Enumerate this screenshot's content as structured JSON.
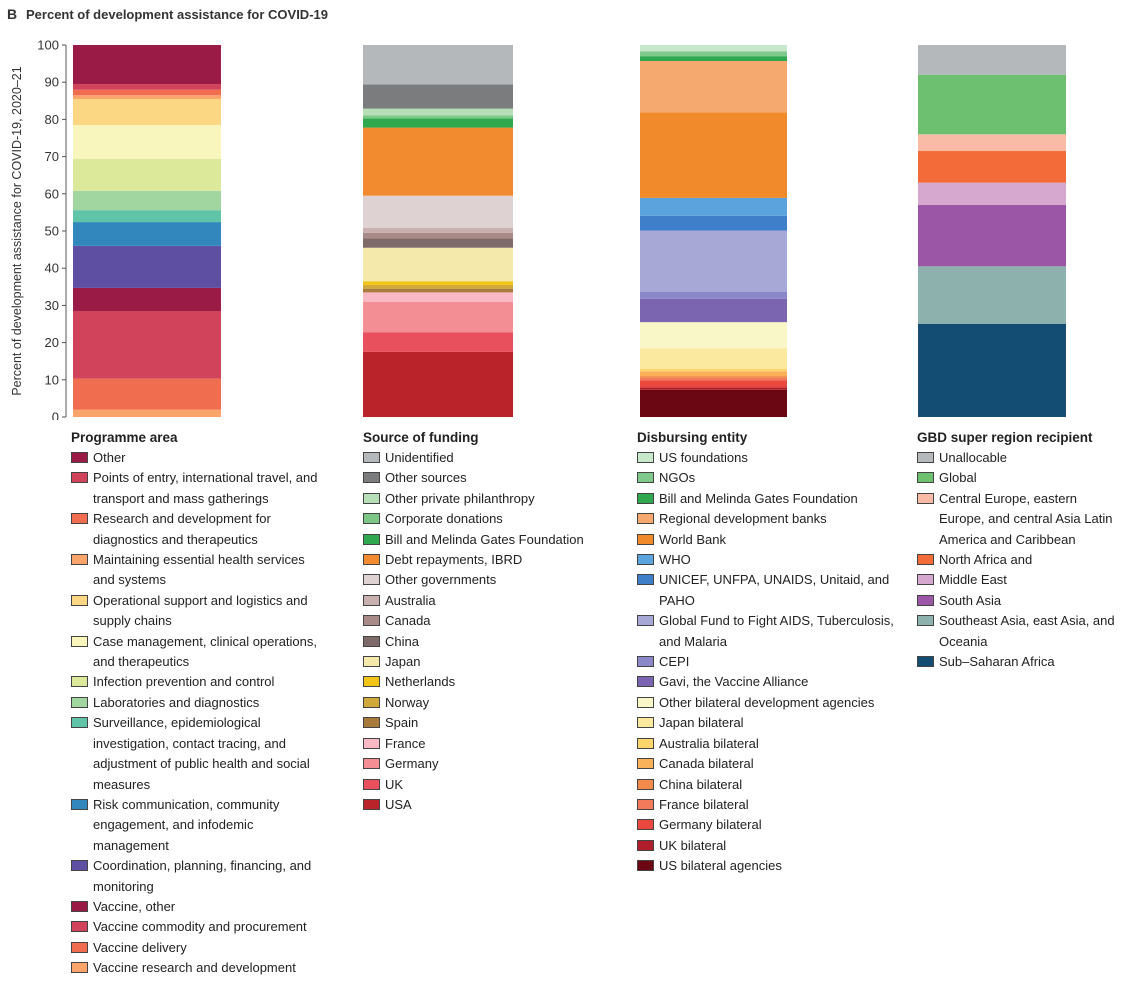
{
  "panel_label": "B",
  "title": "Percent of development assistance for COVID-19",
  "chart_data": [
    {
      "type": "bar",
      "stacked": true,
      "title": "Programme area",
      "ylabel": "Percent of development assistance for COVID-19, 2020–21",
      "ylim": [
        0,
        100
      ],
      "yticks": [
        0,
        10,
        20,
        30,
        40,
        50,
        60,
        70,
        80,
        90,
        100
      ],
      "series": [
        {
          "name": "Other",
          "color": "#9b1b47",
          "values": [
            10.5
          ]
        },
        {
          "name": "Points of entry, international travel, and transport and mass gatherings",
          "color": "#d1435b",
          "values": [
            1.5
          ]
        },
        {
          "name": "Research and development for diagnostics and therapeutics",
          "color": "#f06e4f",
          "values": [
            1.5
          ]
        },
        {
          "name": "Maintaining essential health services and systems",
          "color": "#f8a46a",
          "values": [
            1
          ]
        },
        {
          "name": "Operational support and logistics and supply chains",
          "color": "#fbd783",
          "values": [
            7
          ]
        },
        {
          "name": "Case management, clinical operations, and therapeutics",
          "color": "#f8f5bd",
          "values": [
            9.1
          ]
        },
        {
          "name": "Infection prevention and control",
          "color": "#dce89a",
          "values": [
            8.6
          ]
        },
        {
          "name": "Laboratories and diagnostics",
          "color": "#a2d6a0",
          "values": [
            5.2
          ]
        },
        {
          "name": "Surveillance, epidemiological investigation, contact tracing, and adjustment of public health and social measures",
          "color": "#5fc4a8",
          "values": [
            3.2
          ]
        },
        {
          "name": "Risk communication, community engagement, and infodemic management",
          "color": "#3288bd",
          "values": [
            6.4
          ]
        },
        {
          "name": "Coordination, planning, financing, and monitoring",
          "color": "#5e4fa2",
          "values": [
            11.3
          ]
        },
        {
          "name": "Vaccine, other",
          "color": "#9b1b47",
          "values": [
            6.2
          ]
        },
        {
          "name": "Vaccine commodity and procurement",
          "color": "#d1435b",
          "values": [
            18.2
          ]
        },
        {
          "name": "Vaccine delivery",
          "color": "#f06e4f",
          "values": [
            8.3
          ]
        },
        {
          "name": "Vaccine research and development",
          "color": "#f8a46a",
          "values": [
            2
          ]
        }
      ]
    },
    {
      "type": "bar",
      "stacked": true,
      "title": "Source of funding",
      "ylim": [
        0,
        100
      ],
      "series": [
        {
          "name": "Unidentified",
          "color": "#b4b8bb",
          "values": [
            10.6
          ]
        },
        {
          "name": "Other sources",
          "color": "#7a7c7e",
          "values": [
            6.5
          ]
        },
        {
          "name": "Other private philanthropy",
          "color": "#b6dfb8",
          "values": [
            1.8
          ]
        },
        {
          "name": "Corporate donations",
          "color": "#7cc785",
          "values": [
            0.8
          ]
        },
        {
          "name": "Bill and Melinda Gates Foundation",
          "color": "#2fa84f",
          "values": [
            2.5
          ]
        },
        {
          "name": "Debt repayments, IBRD",
          "color": "#f28b30",
          "values": [
            18.3
          ]
        },
        {
          "name": "Other governments",
          "color": "#ded2d2",
          "values": [
            8.7
          ]
        },
        {
          "name": "Australia",
          "color": "#c8b0ae",
          "values": [
            1.3
          ]
        },
        {
          "name": "Canada",
          "color": "#a88a88",
          "values": [
            1.5
          ]
        },
        {
          "name": "China",
          "color": "#7f6a6a",
          "values": [
            2.5
          ]
        },
        {
          "name": "Japan",
          "color": "#f4e9aa",
          "values": [
            9
          ]
        },
        {
          "name": "Netherlands",
          "color": "#f1c518",
          "values": [
            1
          ]
        },
        {
          "name": "Norway",
          "color": "#d0a93a",
          "values": [
            1
          ]
        },
        {
          "name": "Spain",
          "color": "#a87a3c",
          "values": [
            1
          ]
        },
        {
          "name": "France",
          "color": "#f8b8c4",
          "values": [
            2.5
          ]
        },
        {
          "name": "Germany",
          "color": "#f38f94",
          "values": [
            8.2
          ]
        },
        {
          "name": "UK",
          "color": "#e8505d",
          "values": [
            5.3
          ]
        },
        {
          "name": "USA",
          "color": "#b92329",
          "values": [
            17.5
          ]
        }
      ]
    },
    {
      "type": "bar",
      "stacked": true,
      "title": "Disbursing entity",
      "ylim": [
        0,
        100
      ],
      "series": [
        {
          "name": "US foundations",
          "color": "#c7e8cb",
          "values": [
            1.7
          ]
        },
        {
          "name": "NGOs",
          "color": "#7ec98b",
          "values": [
            1.3
          ]
        },
        {
          "name": "Bill and Melinda Gates Foundation",
          "color": "#2fa84f",
          "values": [
            1.3
          ]
        },
        {
          "name": "Regional development banks",
          "color": "#f6a96f",
          "values": [
            13.8
          ]
        },
        {
          "name": "World Bank",
          "color": "#f08a2a",
          "values": [
            23
          ]
        },
        {
          "name": "WHO",
          "color": "#5ba3dc",
          "values": [
            4.8
          ]
        },
        {
          "name": "UNICEF, UNFPA, UNAIDS, Unitaid, and PAHO",
          "color": "#3f7fc9",
          "values": [
            4
          ]
        },
        {
          "name": "Global Fund to Fight AIDS, Tuberculosis, and Malaria",
          "color": "#a8a8d6",
          "values": [
            16.5
          ]
        },
        {
          "name": "CEPI",
          "color": "#8a88c8",
          "values": [
            1.8
          ]
        },
        {
          "name": "Gavi, the Vaccine Alliance",
          "color": "#7b65b1",
          "values": [
            6.3
          ]
        },
        {
          "name": "Other bilateral development agencies",
          "color": "#f9f6c8",
          "values": [
            7
          ]
        },
        {
          "name": "Japan bilateral",
          "color": "#fbe9a0",
          "values": [
            5.5
          ]
        },
        {
          "name": "Australia bilateral",
          "color": "#fbd66c",
          "values": [
            0.7
          ]
        },
        {
          "name": "Canada bilateral",
          "color": "#f9b25a",
          "values": [
            1.3
          ]
        },
        {
          "name": "China bilateral",
          "color": "#f48a4c",
          "values": [
            0.5
          ]
        },
        {
          "name": "France bilateral",
          "color": "#f37a5a",
          "values": [
            0.7
          ]
        },
        {
          "name": "Germany bilateral",
          "color": "#e8483d",
          "values": [
            1.8
          ]
        },
        {
          "name": "UK bilateral",
          "color": "#b11e2b",
          "values": [
            0.7
          ]
        },
        {
          "name": "US bilateral agencies",
          "color": "#6b0712",
          "values": [
            7.3
          ]
        }
      ]
    },
    {
      "type": "bar",
      "stacked": true,
      "title": "GBD super region recipient",
      "ylim": [
        0,
        100
      ],
      "series": [
        {
          "name": "Unallocable",
          "color": "#b4b8bb",
          "values": [
            8
          ]
        },
        {
          "name": "Global",
          "color": "#6cc070",
          "values": [
            16
          ]
        },
        {
          "name": "Central Europe, eastern Europe, and central Asia Latin America and Caribbean",
          "color": "#f9bba6",
          "values": [
            4.5
          ]
        },
        {
          "name": "North Africa and",
          "color": "#f26b38",
          "values": [
            8.5
          ]
        },
        {
          "name": "Middle East",
          "color": "#d7a8cf",
          "values": [
            6
          ]
        },
        {
          "name": "South Asia",
          "color": "#9b57a6",
          "values": [
            16.5
          ]
        },
        {
          "name": "Southeast Asia, east Asia, and Oceania",
          "color": "#8db2ad",
          "values": [
            15.5
          ]
        },
        {
          "name": "Sub–Saharan Africa",
          "color": "#134d73",
          "values": [
            25
          ]
        }
      ]
    }
  ]
}
